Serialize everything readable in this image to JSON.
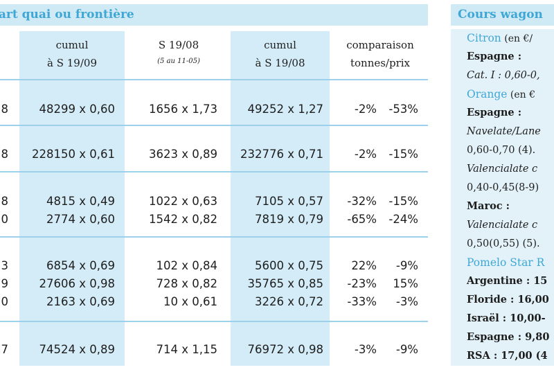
{
  "left_header": "part quai ou frontière",
  "right_header": "Cours wagon",
  "columns": [
    {
      "line1": "cumul",
      "line2": "à S 19/09"
    },
    {
      "line1": "S 19/08",
      "line2": "(5 au 11-05)"
    },
    {
      "line1": "cumul",
      "line2": "à S 19/08"
    },
    {
      "line1": "comparaison",
      "line2": "tonnes/prix"
    }
  ],
  "rows": [
    {
      "edge": "8",
      "c1": "48299 x 0,60",
      "c2": "1656 x 1,73",
      "c3": "49252 x 1,27",
      "t": "-2%",
      "p": "-53%"
    },
    {
      "edge": "8",
      "c1": "228150 x 0,61",
      "c2": "3623 x 0,89",
      "c3": "232776 x 0,71",
      "t": "-2%",
      "p": "-15%"
    },
    {
      "edge": "8",
      "c1": "4815 x 0,49",
      "c2": "1022 x 0,63",
      "c3": "7105 x 0,57",
      "t": "-32%",
      "p": "-15%"
    },
    {
      "edge": "0",
      "c1": "2774 x 0,60",
      "c2": "1542 x 0,82",
      "c3": "7819 x 0,79",
      "t": "-65%",
      "p": "-24%"
    },
    {
      "edge": "3",
      "c1": "6854 x 0,69",
      "c2": "102 x 0,84",
      "c3": "5600 x 0,75",
      "t": "22%",
      "p": "-9%"
    },
    {
      "edge": "9",
      "c1": "27606 x 0,98",
      "c2": "728 x 0,82",
      "c3": "35765 x 0,85",
      "t": "-23%",
      "p": "15%"
    },
    {
      "edge": "0",
      "c1": "2163 x 0,69",
      "c2": "10 x 0,61",
      "c3": "3226 x 0,72",
      "t": "-33%",
      "p": "-3%"
    },
    {
      "edge": "7",
      "c1": "74524 x 0,89",
      "c2": "714 x 1,15",
      "c3": "76972 x 0,98",
      "t": "-3%",
      "p": "-9%"
    }
  ],
  "right_panel": [
    {
      "text": "Citron",
      "suffix": " (en €/",
      "style": "blue"
    },
    {
      "text": "Espagne :",
      "style": "bold"
    },
    {
      "text": "Cat. I : 0,60-0,",
      "style": "ital"
    },
    {
      "text": "Orange",
      "suffix": " (en €",
      "style": "blue"
    },
    {
      "text": "Espagne :",
      "style": "bold"
    },
    {
      "text": "Navelate/Lane",
      "style": "ital"
    },
    {
      "text": "0,60-0,70 (4).",
      "style": "plain"
    },
    {
      "text": "Valencialate c",
      "style": "ital"
    },
    {
      "text": "0,40-0,45(8-9)",
      "style": "plain"
    },
    {
      "text": "Maroc :",
      "style": "bold"
    },
    {
      "text": "Valencialate c",
      "style": "ital"
    },
    {
      "text": "0,50(0,55) (5).",
      "style": "plain"
    },
    {
      "text": "Pomelo Star R",
      "style": "blue"
    },
    {
      "text": "Argentine : 15",
      "style": "bold"
    },
    {
      "text": "Floride : 16,00",
      "style": "bold"
    },
    {
      "text": "Israël : 10,00-",
      "style": "bold"
    },
    {
      "text": "Espagne : 9,80",
      "style": "bold"
    },
    {
      "text": "RSA : 17,00 (4",
      "style": "bold"
    }
  ]
}
